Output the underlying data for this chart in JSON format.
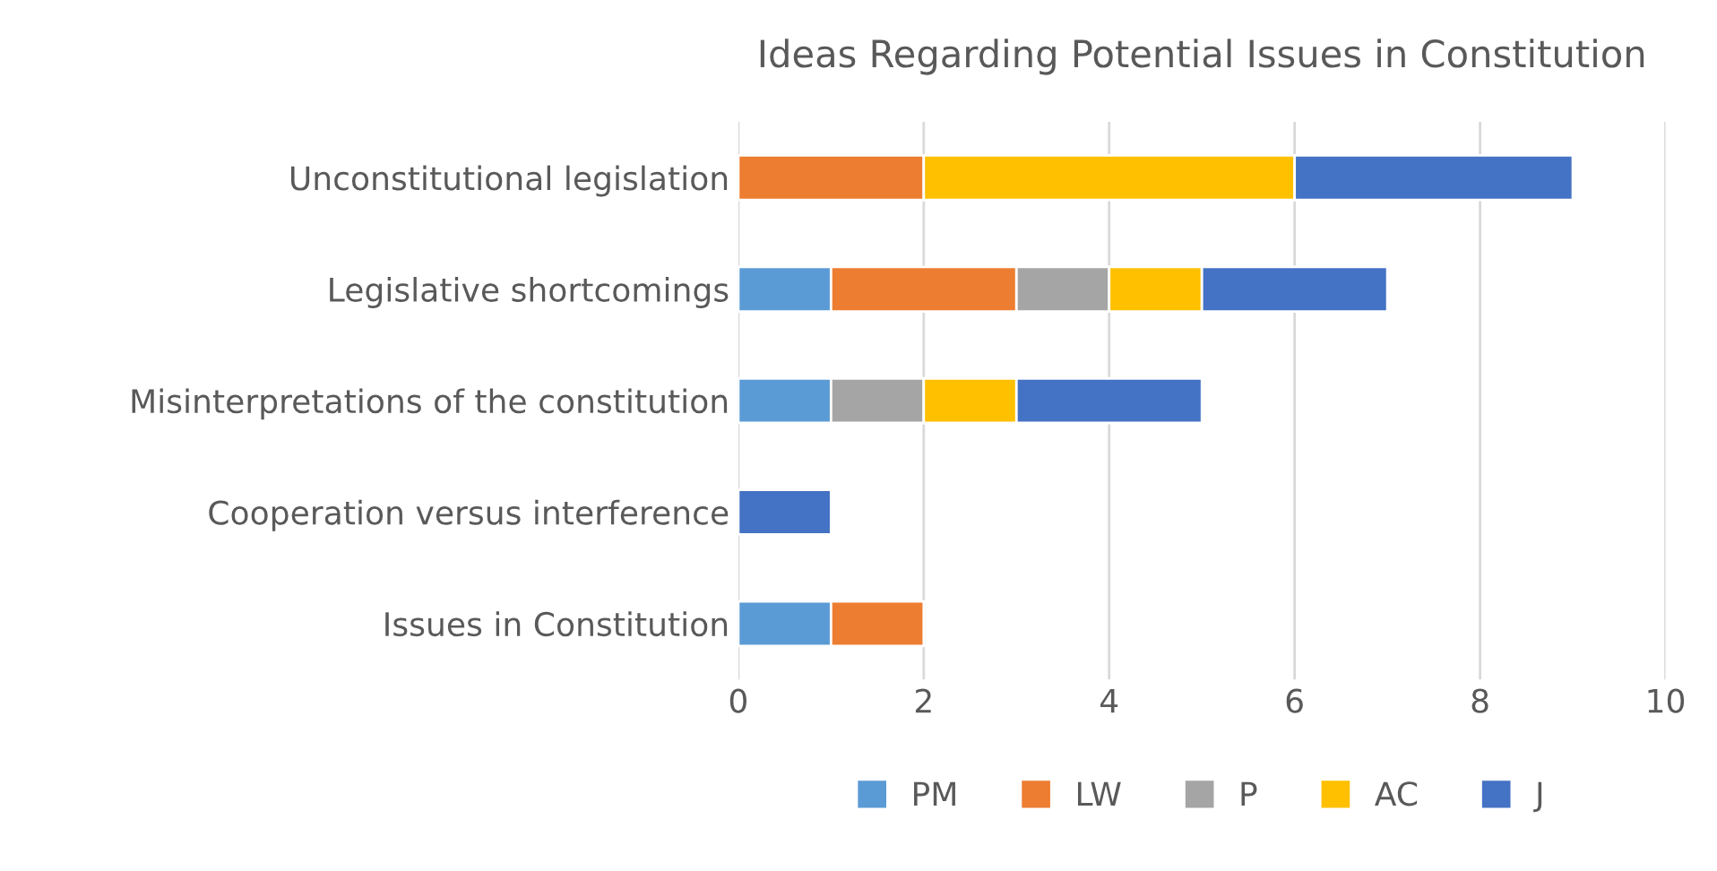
{
  "chart_data": {
    "type": "bar",
    "orientation": "horizontal",
    "stacked": true,
    "title": "Ideas Regarding Potential Issues in Constitution",
    "categories": [
      "Unconstitutional legislation",
      "Legislative shortcomings",
      "Misinterpretations of the constitution",
      "Cooperation versus interference",
      "Issues in Constitution"
    ],
    "series": [
      {
        "name": "PM",
        "color": "#5b9bd5",
        "values": [
          null,
          1,
          1,
          null,
          1
        ]
      },
      {
        "name": "LW",
        "color": "#ed7d31",
        "values": [
          2,
          2,
          null,
          null,
          1
        ]
      },
      {
        "name": "P",
        "color": "#a5a5a5",
        "values": [
          null,
          1,
          1,
          null,
          null
        ]
      },
      {
        "name": "AC",
        "color": "#ffc000",
        "values": [
          4,
          1,
          1,
          null,
          null
        ]
      },
      {
        "name": "J",
        "color": "#4472c4",
        "values": [
          3,
          2,
          2,
          1,
          null
        ]
      }
    ],
    "xlim": [
      0,
      10
    ],
    "xticks": [
      0,
      2,
      4,
      6,
      8,
      10
    ],
    "grid": "x",
    "legend": "bottom"
  }
}
